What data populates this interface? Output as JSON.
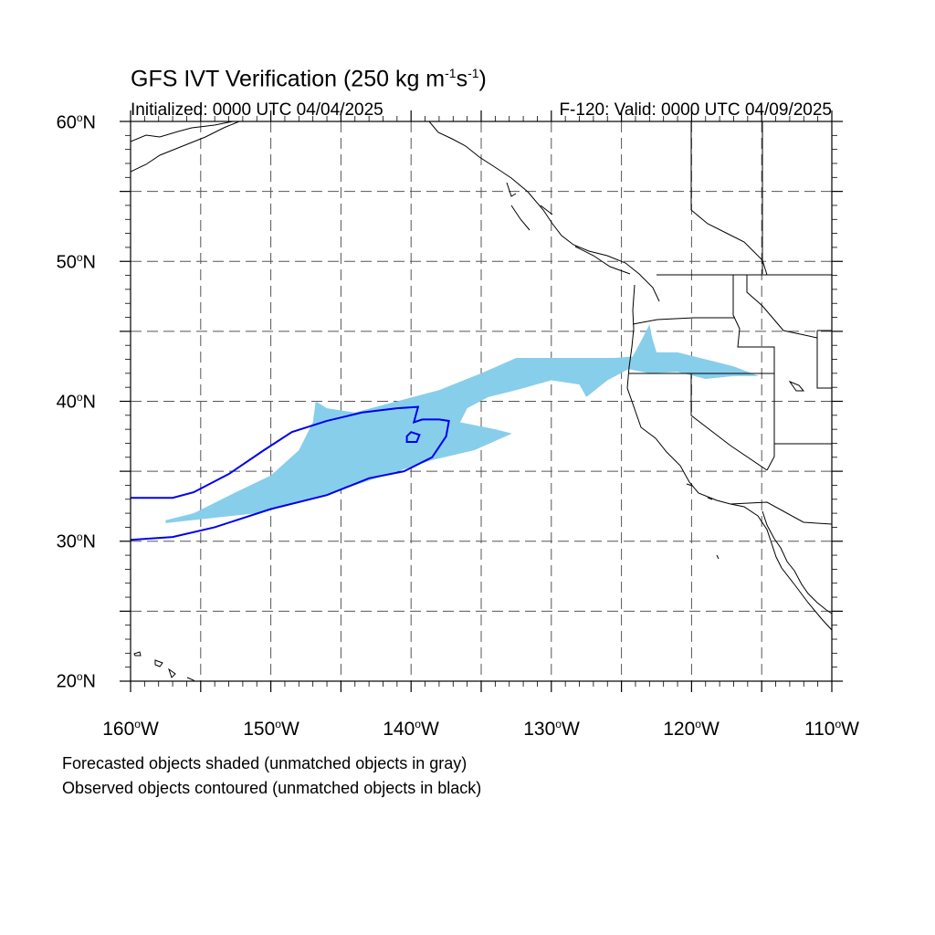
{
  "title": {
    "main": "GFS IVT Verification (250 kg m",
    "exp1": "-1",
    "mid": "s",
    "exp2": "-1",
    "end": ")"
  },
  "subtitle": {
    "initialized": "Initialized: 0000 UTC 04/04/2025",
    "valid": "F-120: Valid: 0000 UTC 04/09/2025"
  },
  "axes": {
    "lat_labels": [
      {
        "deg": "60",
        "hem": "N"
      },
      {
        "deg": "50",
        "hem": "N"
      },
      {
        "deg": "40",
        "hem": "N"
      },
      {
        "deg": "30",
        "hem": "N"
      },
      {
        "deg": "20",
        "hem": "N"
      }
    ],
    "lon_labels": [
      {
        "deg": "160",
        "hem": "W"
      },
      {
        "deg": "150",
        "hem": "W"
      },
      {
        "deg": "140",
        "hem": "W"
      },
      {
        "deg": "130",
        "hem": "W"
      },
      {
        "deg": "120",
        "hem": "W"
      },
      {
        "deg": "110",
        "hem": "W"
      }
    ],
    "degree_symbol": "o",
    "lon_range": [
      -160,
      -110
    ],
    "lat_range": [
      20,
      60
    ],
    "grid_interval_deg": 5
  },
  "caption": {
    "line1": "Forecasted objects shaded (unmatched objects in gray)",
    "line2": "Observed objects contoured (unmatched objects in black)"
  },
  "colors": {
    "forecast_fill": "#87CEEB",
    "observed_contour": "#0000EE",
    "coastline": "#000000",
    "grid": "#555555"
  },
  "map_data": {
    "forecast_object": [
      [
        -157.5,
        31.5
      ],
      [
        -155.5,
        32.0
      ],
      [
        -152.5,
        33.5
      ],
      [
        -150.0,
        34.7
      ],
      [
        -148.0,
        36.5
      ],
      [
        -147.0,
        38.5
      ],
      [
        -146.8,
        40.0
      ],
      [
        -146.0,
        39.5
      ],
      [
        -144.0,
        39.2
      ],
      [
        -141.0,
        40.0
      ],
      [
        -138.0,
        40.8
      ],
      [
        -135.0,
        42.0
      ],
      [
        -132.5,
        43.1
      ],
      [
        -129.5,
        43.1
      ],
      [
        -127.5,
        43.1
      ],
      [
        -125.5,
        43.1
      ],
      [
        -124.2,
        43.2
      ],
      [
        -123.5,
        44.5
      ],
      [
        -123.0,
        45.5
      ],
      [
        -122.8,
        44.5
      ],
      [
        -122.5,
        43.5
      ],
      [
        -121.0,
        43.5
      ],
      [
        -119.0,
        43.0
      ],
      [
        -117.0,
        42.5
      ],
      [
        -115.2,
        41.8
      ],
      [
        -117.0,
        41.8
      ],
      [
        -119.0,
        41.6
      ],
      [
        -121.0,
        42.1
      ],
      [
        -123.0,
        42.0
      ],
      [
        -124.5,
        42.3
      ],
      [
        -126.0,
        41.5
      ],
      [
        -127.5,
        40.3
      ],
      [
        -128.0,
        41.2
      ],
      [
        -130.0,
        41.5
      ],
      [
        -132.5,
        40.8
      ],
      [
        -134.5,
        40.3
      ],
      [
        -136.0,
        39.5
      ],
      [
        -136.5,
        38.5
      ],
      [
        -134.0,
        38.0
      ],
      [
        -132.8,
        37.7
      ],
      [
        -135.5,
        36.5
      ],
      [
        -138.5,
        35.8
      ],
      [
        -142.5,
        34.5
      ],
      [
        -147.0,
        33.0
      ],
      [
        -151.0,
        32.0
      ],
      [
        -157.5,
        31.3
      ]
    ],
    "observed_contours": [
      [
        [
          -160.0,
          33.1
        ],
        [
          -157.0,
          33.1
        ],
        [
          -155.5,
          33.5
        ],
        [
          -153.0,
          34.8
        ],
        [
          -150.5,
          36.5
        ],
        [
          -148.5,
          37.8
        ],
        [
          -146.0,
          38.6
        ],
        [
          -143.5,
          39.2
        ],
        [
          -141.0,
          39.5
        ],
        [
          -139.5,
          39.6
        ],
        [
          -139.8,
          38.5
        ],
        [
          -139.2,
          38.7
        ],
        [
          -138.0,
          38.7
        ],
        [
          -137.3,
          38.6
        ],
        [
          -137.5,
          37.5
        ],
        [
          -138.5,
          36.0
        ],
        [
          -140.5,
          35.0
        ],
        [
          -143.0,
          34.5
        ],
        [
          -146.0,
          33.3
        ],
        [
          -150.0,
          32.3
        ],
        [
          -154.0,
          31.0
        ],
        [
          -157.0,
          30.3
        ],
        [
          -160.0,
          30.1
        ]
      ],
      [
        [
          -140.3,
          37.1
        ],
        [
          -139.6,
          37.1
        ],
        [
          -139.4,
          37.6
        ],
        [
          -140.0,
          37.8
        ],
        [
          -140.3,
          37.5
        ]
      ]
    ]
  }
}
